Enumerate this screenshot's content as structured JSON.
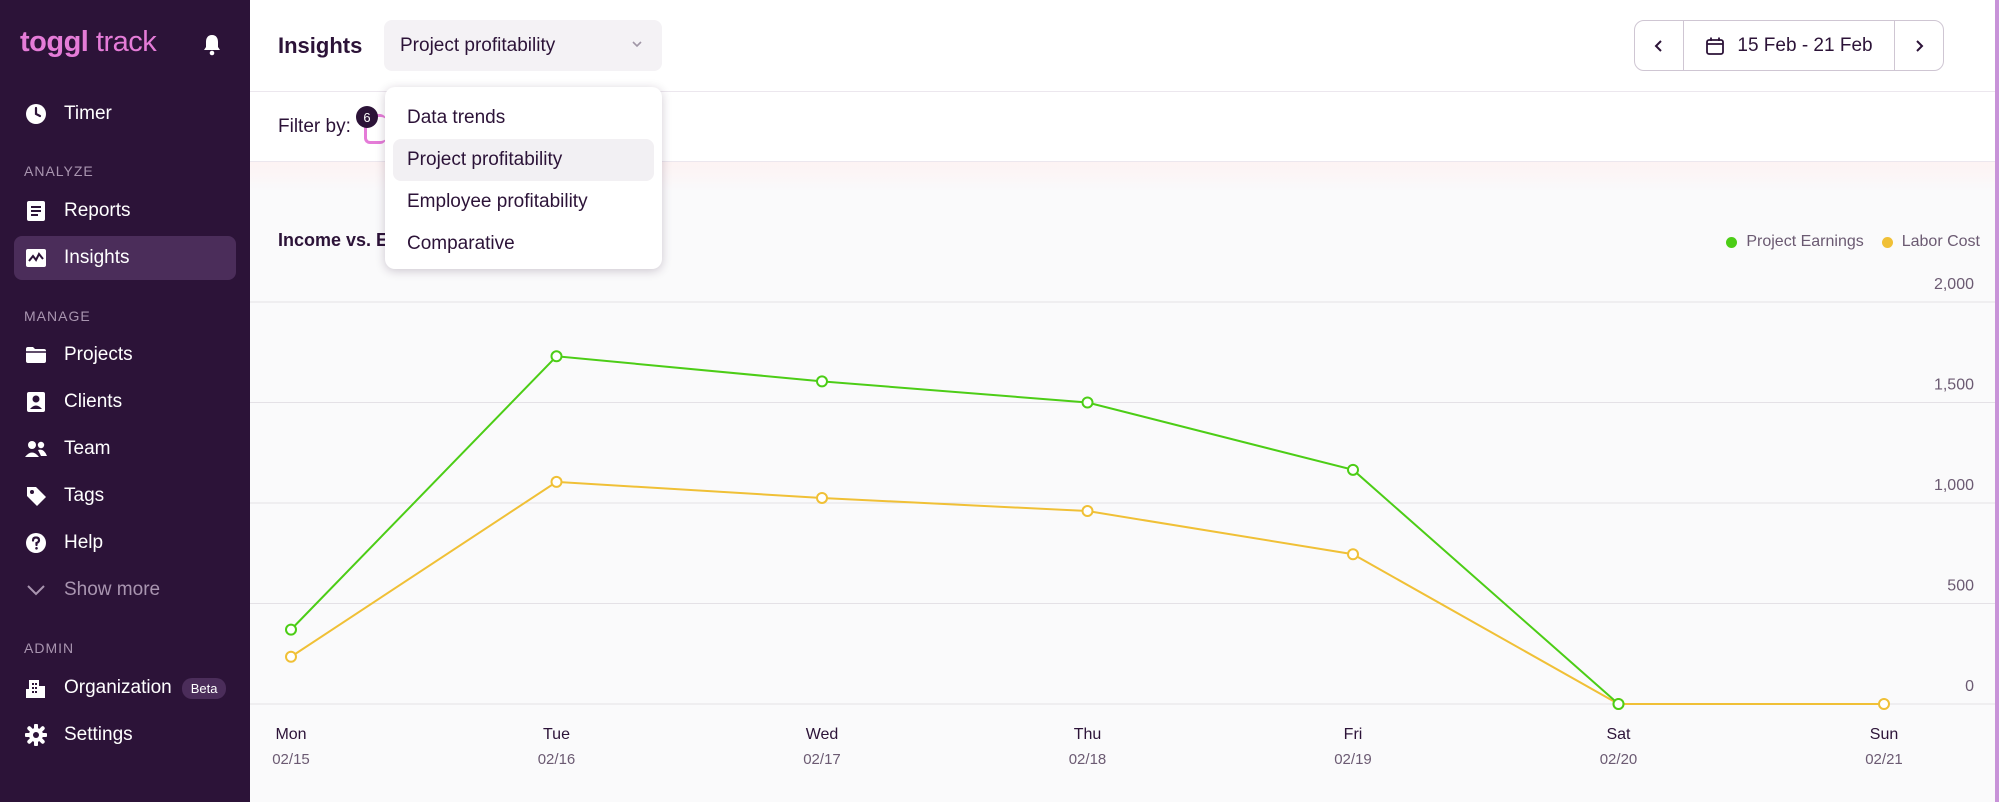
{
  "sidebar": {
    "logo_bold": "toggl",
    "logo_light": " track",
    "nav": {
      "timer": "Timer",
      "analyze_label": "ANALYZE",
      "reports": "Reports",
      "insights": "Insights",
      "manage_label": "MANAGE",
      "projects": "Projects",
      "clients": "Clients",
      "team": "Team",
      "tags": "Tags",
      "help": "Help",
      "show_more": "Show more",
      "admin_label": "ADMIN",
      "organization": "Organization",
      "organization_badge": "Beta",
      "settings": "Settings"
    },
    "active_item": "Insights"
  },
  "header": {
    "title": "Insights",
    "report_select": "Project profitability",
    "date_range": "15 Feb - 21 Feb"
  },
  "filter": {
    "label": "Filter by:",
    "badge_count": "6"
  },
  "dropdown": {
    "options": [
      "Data trends",
      "Project profitability",
      "Employee profitability",
      "Comparative"
    ],
    "selected": "Project profitability"
  },
  "chart_data": {
    "type": "line",
    "title": "Income vs. E",
    "categories": [
      "Mon",
      "Tue",
      "Wed",
      "Thu",
      "Fri",
      "Sat",
      "Sun"
    ],
    "dates": [
      "02/15",
      "02/16",
      "02/17",
      "02/18",
      "02/19",
      "02/20",
      "02/21"
    ],
    "series": [
      {
        "name": "Project Earnings",
        "color": "#4ccd16",
        "values": [
          370,
          1730,
          1605,
          1500,
          1165,
          0,
          null
        ]
      },
      {
        "name": "Labor Cost",
        "color": "#f0c036",
        "values": [
          235,
          1105,
          1025,
          960,
          745,
          0,
          0
        ]
      }
    ],
    "y_ticks": [
      0,
      500,
      1000,
      1500,
      2000
    ],
    "y_tick_labels": [
      "0",
      "500",
      "1,000",
      "1,500",
      "2,000"
    ],
    "ylim": [
      0,
      2000
    ],
    "grid": true,
    "legend_position": "top-right",
    "y_axis_side": "right"
  }
}
